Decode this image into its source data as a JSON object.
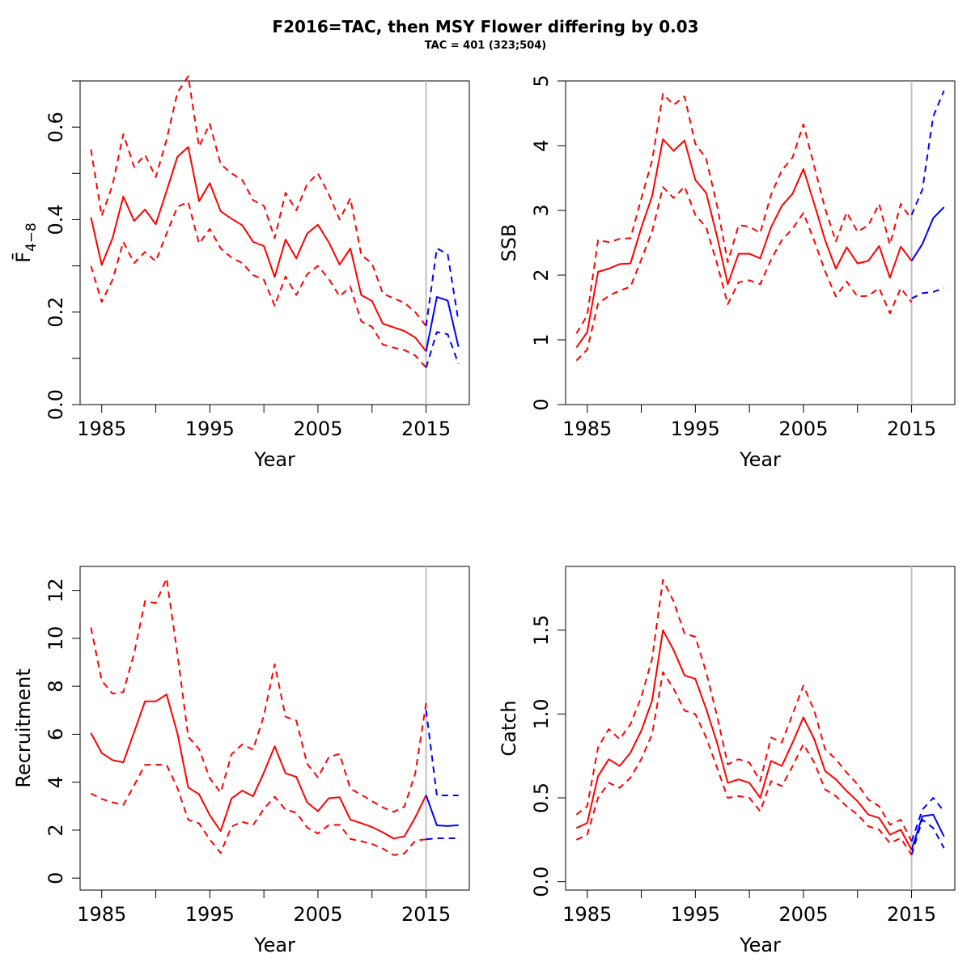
{
  "title": "F2016=TAC, then MSY Flower differing by 0.03",
  "subtitle": "TAC = 401 (323;504)",
  "colors": {
    "history": "#ff0000",
    "projection": "#0000ff",
    "divider": "#c0c0c0"
  },
  "chart_data": [
    {
      "type": "line",
      "ylabel": "F̄",
      "ylabel_sub": "4−8",
      "xlabel": "Year",
      "xlim": [
        1983,
        2019
      ],
      "ylim": [
        0,
        0.7
      ],
      "xticks": [
        1985,
        1995,
        2005,
        2015
      ],
      "yticks": [
        0.0,
        0.2,
        0.4,
        0.6
      ],
      "yticklabels": [
        "0.0",
        "0.2",
        "0.4",
        "0.6"
      ],
      "yminor": [
        0.1,
        0.3,
        0.5,
        0.7
      ],
      "divider_year": 2015,
      "history": {
        "x": [
          1984,
          1985,
          1986,
          1987,
          1988,
          1989,
          1990,
          1991,
          1992,
          1993,
          1994,
          1995,
          1996,
          1997,
          1998,
          1999,
          2000,
          2001,
          2002,
          2003,
          2004,
          2005,
          2006,
          2007,
          2008,
          2009,
          2010,
          2011,
          2012,
          2013,
          2014,
          2015
        ],
        "mid": [
          0.405,
          0.302,
          0.36,
          0.45,
          0.397,
          0.422,
          0.39,
          0.462,
          0.536,
          0.557,
          0.44,
          0.479,
          0.418,
          0.402,
          0.388,
          0.352,
          0.343,
          0.276,
          0.357,
          0.316,
          0.37,
          0.389,
          0.351,
          0.303,
          0.338,
          0.237,
          0.224,
          0.175,
          0.167,
          0.159,
          0.145,
          0.115
        ],
        "upper": [
          0.552,
          0.408,
          0.475,
          0.585,
          0.514,
          0.54,
          0.492,
          0.573,
          0.675,
          0.71,
          0.558,
          0.607,
          0.52,
          0.5,
          0.486,
          0.442,
          0.43,
          0.36,
          0.458,
          0.42,
          0.477,
          0.5,
          0.455,
          0.4,
          0.446,
          0.324,
          0.305,
          0.24,
          0.23,
          0.22,
          0.2,
          0.17
        ],
        "lower": [
          0.3,
          0.222,
          0.27,
          0.352,
          0.306,
          0.33,
          0.31,
          0.37,
          0.428,
          0.438,
          0.348,
          0.38,
          0.338,
          0.318,
          0.306,
          0.28,
          0.27,
          0.214,
          0.277,
          0.237,
          0.282,
          0.3,
          0.272,
          0.234,
          0.255,
          0.18,
          0.168,
          0.13,
          0.123,
          0.118,
          0.106,
          0.08
        ]
      },
      "projection": {
        "x": [
          2015,
          2016,
          2017,
          2018
        ],
        "mid": [
          0.115,
          0.233,
          0.225,
          0.125
        ],
        "upper": [
          0.17,
          0.338,
          0.325,
          0.18
        ],
        "lower": [
          0.08,
          0.157,
          0.152,
          0.088
        ]
      }
    },
    {
      "type": "line",
      "ylabel": "SSB",
      "xlabel": "Year",
      "xlim": [
        1983,
        2019
      ],
      "ylim": [
        0,
        5
      ],
      "xticks": [
        1985,
        1995,
        2005,
        2015
      ],
      "yticks": [
        0,
        1,
        2,
        3,
        4,
        5
      ],
      "yticklabels": [
        "0",
        "1",
        "2",
        "3",
        "4",
        "5"
      ],
      "divider_year": 2015,
      "history": {
        "x": [
          1984,
          1985,
          1986,
          1987,
          1988,
          1989,
          1990,
          1991,
          1992,
          1993,
          1994,
          1995,
          1996,
          1997,
          1998,
          1999,
          2000,
          2001,
          2002,
          2003,
          2004,
          2005,
          2006,
          2007,
          2008,
          2009,
          2010,
          2011,
          2012,
          2013,
          2014,
          2015
        ],
        "mid": [
          0.88,
          1.12,
          2.05,
          2.1,
          2.17,
          2.18,
          2.73,
          3.22,
          4.1,
          3.92,
          4.08,
          3.47,
          3.27,
          2.6,
          1.86,
          2.33,
          2.33,
          2.26,
          2.74,
          3.07,
          3.26,
          3.64,
          3.1,
          2.54,
          2.1,
          2.43,
          2.18,
          2.22,
          2.45,
          1.96,
          2.44,
          2.22
        ],
        "upper": [
          1.1,
          1.38,
          2.54,
          2.51,
          2.56,
          2.57,
          3.18,
          3.77,
          4.8,
          4.63,
          4.76,
          4.03,
          3.8,
          3.08,
          2.2,
          2.77,
          2.75,
          2.65,
          3.24,
          3.62,
          3.82,
          4.33,
          3.68,
          3.03,
          2.52,
          2.97,
          2.67,
          2.77,
          3.1,
          2.47,
          3.1,
          2.86
        ],
        "lower": [
          0.68,
          0.85,
          1.56,
          1.68,
          1.76,
          1.82,
          2.24,
          2.67,
          3.36,
          3.19,
          3.37,
          2.93,
          2.74,
          2.18,
          1.55,
          1.89,
          1.92,
          1.86,
          2.24,
          2.54,
          2.72,
          2.96,
          2.53,
          2.06,
          1.67,
          1.9,
          1.67,
          1.68,
          1.8,
          1.41,
          1.8,
          1.58
        ]
      },
      "projection": {
        "x": [
          2015,
          2016,
          2017,
          2018
        ],
        "mid": [
          2.22,
          2.48,
          2.88,
          3.05
        ],
        "upper": [
          2.93,
          3.32,
          4.45,
          4.85
        ],
        "lower": [
          1.64,
          1.72,
          1.74,
          1.8
        ]
      }
    },
    {
      "type": "line",
      "ylabel": "Recruitment",
      "xlabel": "Year",
      "xlim": [
        1983,
        2019
      ],
      "ylim": [
        -0.5,
        13
      ],
      "xticks": [
        1985,
        1995,
        2005,
        2015
      ],
      "yticks": [
        0,
        2,
        4,
        6,
        8,
        10,
        12
      ],
      "yticklabels": [
        "0",
        "2",
        "4",
        "6",
        "8",
        "10",
        "12"
      ],
      "divider_year": 2015,
      "history": {
        "x": [
          1984,
          1985,
          1986,
          1987,
          1988,
          1989,
          1990,
          1991,
          1992,
          1993,
          1994,
          1995,
          1996,
          1997,
          1998,
          1999,
          2000,
          2001,
          2002,
          2003,
          2004,
          2005,
          2006,
          2007,
          2008,
          2009,
          2010,
          2011,
          2012,
          2013,
          2014,
          2015
        ],
        "mid": [
          6.05,
          5.22,
          4.92,
          4.83,
          6.09,
          7.37,
          7.37,
          7.66,
          6.03,
          3.78,
          3.5,
          2.62,
          1.96,
          3.32,
          3.65,
          3.41,
          4.4,
          5.5,
          4.37,
          4.22,
          3.16,
          2.79,
          3.33,
          3.37,
          2.44,
          2.29,
          2.13,
          1.91,
          1.65,
          1.74,
          2.53,
          3.46
        ],
        "upper": [
          10.45,
          8.24,
          7.69,
          7.76,
          9.38,
          11.55,
          11.47,
          12.5,
          9.34,
          5.9,
          5.38,
          4.16,
          3.57,
          5.16,
          5.58,
          5.36,
          6.78,
          8.92,
          6.73,
          6.57,
          4.77,
          4.2,
          5.04,
          5.18,
          3.73,
          3.48,
          3.21,
          2.95,
          2.76,
          2.98,
          4.36,
          7.3
        ],
        "lower": [
          3.53,
          3.3,
          3.16,
          3.05,
          3.87,
          4.72,
          4.73,
          4.72,
          3.76,
          2.43,
          2.28,
          1.61,
          1.05,
          2.15,
          2.35,
          2.21,
          2.89,
          3.39,
          2.85,
          2.73,
          2.11,
          1.86,
          2.21,
          2.22,
          1.63,
          1.54,
          1.42,
          1.23,
          0.96,
          1.03,
          1.56,
          1.62
        ]
      },
      "projection": {
        "x": [
          2015,
          2016,
          2017,
          2018
        ],
        "mid": [
          3.46,
          2.2,
          2.17,
          2.21
        ],
        "upper": [
          7.0,
          3.45,
          3.45,
          3.45
        ],
        "lower": [
          1.62,
          1.66,
          1.66,
          1.66
        ]
      }
    },
    {
      "type": "line",
      "ylabel": "Catch",
      "xlabel": "Year",
      "xlim": [
        1983,
        2019
      ],
      "ylim": [
        -0.05,
        1.88
      ],
      "xticks": [
        1985,
        1995,
        2005,
        2015
      ],
      "yticks": [
        0.0,
        0.5,
        1.0,
        1.5
      ],
      "yticklabels": [
        "0.0",
        "0.5",
        "1.0",
        "1.5"
      ],
      "divider_year": 2015,
      "history": {
        "x": [
          1984,
          1985,
          1986,
          1987,
          1988,
          1989,
          1990,
          1991,
          1992,
          1993,
          1994,
          1995,
          1996,
          1997,
          1998,
          1999,
          2000,
          2001,
          2002,
          2003,
          2004,
          2005,
          2006,
          2007,
          2008,
          2009,
          2010,
          2011,
          2012,
          2013,
          2014,
          2015
        ],
        "mid": [
          0.32,
          0.35,
          0.63,
          0.73,
          0.69,
          0.77,
          0.9,
          1.08,
          1.5,
          1.38,
          1.23,
          1.21,
          1.03,
          0.83,
          0.59,
          0.61,
          0.59,
          0.5,
          0.72,
          0.69,
          0.83,
          0.98,
          0.85,
          0.66,
          0.61,
          0.54,
          0.48,
          0.4,
          0.38,
          0.28,
          0.31,
          0.19
        ],
        "upper": [
          0.4,
          0.45,
          0.8,
          0.91,
          0.85,
          0.94,
          1.1,
          1.33,
          1.8,
          1.67,
          1.48,
          1.46,
          1.25,
          0.99,
          0.7,
          0.73,
          0.71,
          0.6,
          0.86,
          0.83,
          1.0,
          1.17,
          1.02,
          0.79,
          0.73,
          0.65,
          0.58,
          0.49,
          0.45,
          0.34,
          0.37,
          0.24
        ],
        "lower": [
          0.25,
          0.28,
          0.5,
          0.59,
          0.56,
          0.62,
          0.73,
          0.88,
          1.25,
          1.15,
          1.02,
          1.0,
          0.86,
          0.68,
          0.5,
          0.51,
          0.5,
          0.42,
          0.6,
          0.57,
          0.69,
          0.82,
          0.71,
          0.55,
          0.51,
          0.45,
          0.4,
          0.33,
          0.31,
          0.23,
          0.26,
          0.16
        ]
      },
      "projection": {
        "x": [
          2015,
          2016,
          2017,
          2018
        ],
        "mid": [
          0.19,
          0.39,
          0.4,
          0.27
        ],
        "upper": [
          0.24,
          0.43,
          0.5,
          0.42
        ],
        "lower": [
          0.16,
          0.37,
          0.32,
          0.2
        ]
      }
    }
  ]
}
